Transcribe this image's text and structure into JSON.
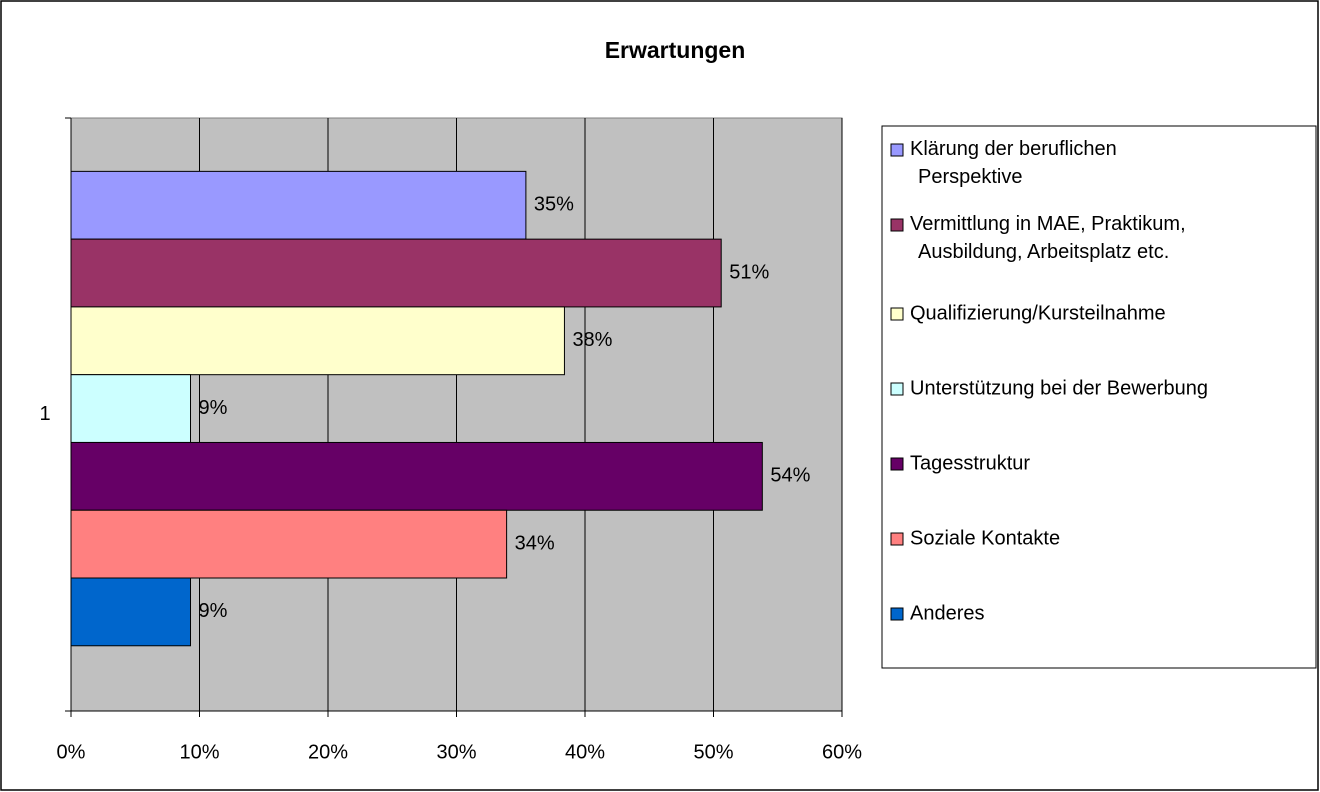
{
  "chart_data": {
    "type": "hbar",
    "title": "Erwartungen",
    "categories": [
      "1"
    ],
    "series": [
      {
        "name": "Klärung der beruflichen Perspektive",
        "color": "#9999FF",
        "values": [
          35.4
        ],
        "value_labels": [
          "35%"
        ]
      },
      {
        "name": "Vermittlung in MAE, Praktikum, Ausbildung, Arbeitsplatz etc.",
        "color": "#993366",
        "values": [
          50.6
        ],
        "value_labels": [
          "51%"
        ]
      },
      {
        "name": "Qualifizierung/Kursteilnahme",
        "color": "#FFFFCC",
        "values": [
          38.4
        ],
        "value_labels": [
          "38%"
        ]
      },
      {
        "name": "Unterstützung bei der Bewerbung",
        "color": "#CCFFFF",
        "values": [
          9.3
        ],
        "value_labels": [
          "9%"
        ]
      },
      {
        "name": "Tagesstruktur",
        "color": "#660066",
        "values": [
          53.8
        ],
        "value_labels": [
          "54%"
        ]
      },
      {
        "name": "Soziale Kontakte",
        "color": "#FF8080",
        "values": [
          33.9
        ],
        "value_labels": [
          "34%"
        ]
      },
      {
        "name": "Anderes",
        "color": "#0066CC",
        "values": [
          9.3
        ],
        "value_labels": [
          "9%"
        ]
      }
    ],
    "xlim": [
      0,
      60
    ],
    "xticks": [
      {
        "value": 0,
        "label": "0%"
      },
      {
        "value": 10,
        "label": "10%"
      },
      {
        "value": 20,
        "label": "20%"
      },
      {
        "value": 30,
        "label": "30%"
      },
      {
        "value": 40,
        "label": "40%"
      },
      {
        "value": 50,
        "label": "50%"
      },
      {
        "value": 60,
        "label": "60%"
      }
    ],
    "grid": true,
    "legend": "right"
  }
}
